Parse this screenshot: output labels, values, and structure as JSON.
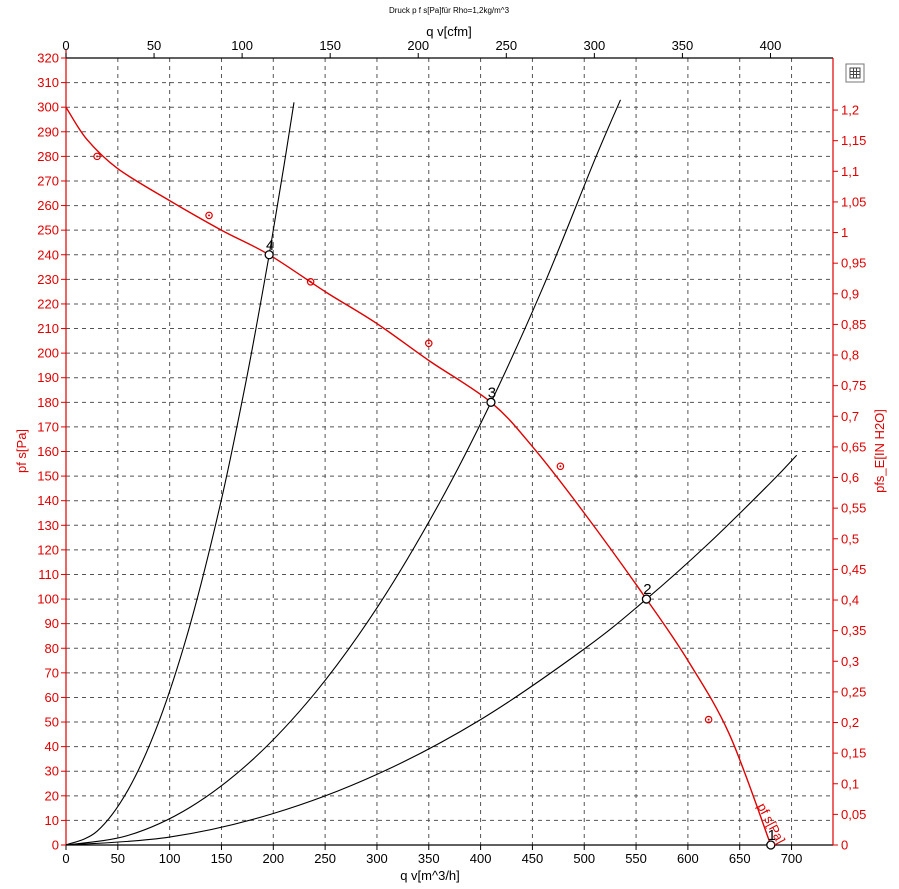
{
  "chart_data": {
    "type": "line",
    "title": "Druck p f s[Pa]für Rho=1,2kg/m^3",
    "xlabel": "q v[m^3/h]",
    "x2label": "q v[cfm]",
    "ylabel": "pf s[Pa]",
    "y2label": "pfs_E[IN H2O]",
    "curve_label": "pf s[Pa]",
    "xlim": [
      0,
      740
    ],
    "x2lim": [
      0,
      435.5
    ],
    "ylim": [
      0,
      320
    ],
    "y2lim": [
      0,
      1.285
    ],
    "x_ticks": [
      "0",
      "50",
      "100",
      "150",
      "200",
      "250",
      "300",
      "350",
      "400",
      "450",
      "500",
      "550",
      "600",
      "650",
      "700"
    ],
    "x2_ticks": [
      "0",
      "50",
      "100",
      "150",
      "200",
      "250",
      "300",
      "350",
      "400"
    ],
    "y_ticks": [
      "0",
      "10",
      "20",
      "30",
      "40",
      "50",
      "60",
      "70",
      "80",
      "90",
      "100",
      "110",
      "120",
      "130",
      "140",
      "150",
      "160",
      "170",
      "180",
      "190",
      "200",
      "210",
      "220",
      "230",
      "240",
      "250",
      "260",
      "270",
      "280",
      "290",
      "300",
      "310",
      "320"
    ],
    "y2_ticks": [
      "0",
      "0,05",
      "0,1",
      "0,15",
      "0,2",
      "0,25",
      "0,3",
      "0,35",
      "0,4",
      "0,45",
      "0,5",
      "0,55",
      "0,6",
      "0,65",
      "0,7",
      "0,75",
      "0,8",
      "0,85",
      "0,9",
      "0,95",
      "1",
      "1,05",
      "1,1",
      "1,15",
      "1,2"
    ],
    "grid": true,
    "colors": {
      "fan_curve": "#e00000",
      "system_curves": "#000000",
      "grid": "#555555"
    },
    "series": [
      {
        "name": "pf s[Pa]",
        "color": "#e00000",
        "x": [
          0,
          20,
          50,
          100,
          150,
          196,
          250,
          300,
          350,
          410,
          450,
          500,
          560,
          600,
          640,
          680
        ],
        "y": [
          300,
          287,
          275,
          262,
          250,
          240,
          225,
          212,
          197,
          180,
          162,
          135,
          100,
          75,
          45,
          0
        ],
        "markers_x": [
          30,
          138,
          236,
          350,
          477,
          620
        ],
        "markers_y": [
          280,
          256,
          229,
          204,
          154,
          51
        ]
      },
      {
        "name": "",
        "color": "#000000",
        "x": [
          0,
          30,
          60,
          90,
          120,
          150,
          175,
          196,
          210,
          220
        ],
        "y": [
          0,
          5.6,
          22.5,
          50.6,
          90,
          140.6,
          191.4,
          240,
          275.5,
          302
        ]
      },
      {
        "name": "",
        "color": "#000000",
        "x": [
          0,
          60,
          120,
          180,
          240,
          300,
          360,
          410,
          460,
          510,
          535
        ],
        "y": [
          0,
          3.9,
          15.4,
          34.7,
          61.7,
          96.4,
          138.8,
          180,
          226.6,
          278.5,
          303
        ]
      },
      {
        "name": "",
        "color": "#000000",
        "x": [
          0,
          100,
          200,
          300,
          400,
          500,
          560,
          620,
          680,
          705
        ],
        "y": [
          0,
          3.2,
          12.8,
          28.7,
          51,
          79.7,
          100,
          122.6,
          147.4,
          158.5
        ]
      }
    ],
    "operating_points": [
      {
        "label": "1",
        "x": 680,
        "y": 0
      },
      {
        "label": "2",
        "x": 560,
        "y": 100
      },
      {
        "label": "3",
        "x": 410,
        "y": 180
      },
      {
        "label": "4",
        "x": 196,
        "y": 240
      }
    ]
  },
  "toolbar": {
    "icon": "grid-table-icon"
  }
}
